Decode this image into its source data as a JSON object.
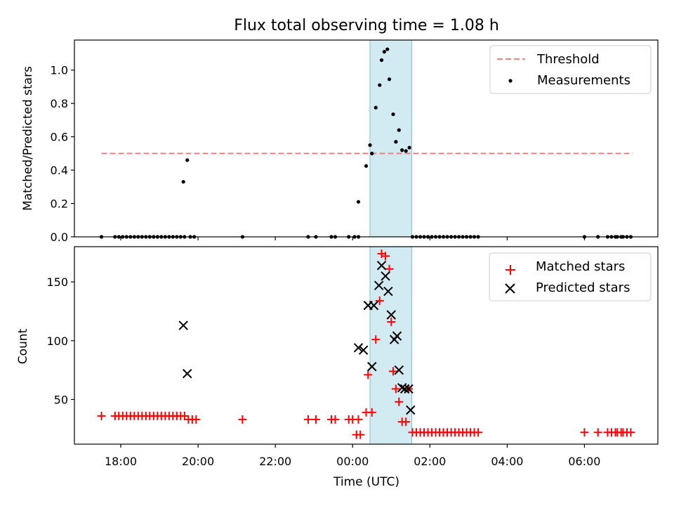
{
  "title": "Flux total observing time = 1.08 h",
  "chart_data": [
    {
      "type": "scatter",
      "panel": "top",
      "ylabel": "Matched/Predicted stars",
      "xlabel": "",
      "x_unit": "hours since 18:00 UTC",
      "xlim": [
        -1.2,
        13.9
      ],
      "ylim": [
        0.0,
        1.18
      ],
      "yticks": [
        0.0,
        0.2,
        0.4,
        0.6,
        0.8,
        1.0
      ],
      "ytick_labels": [
        "0.0",
        "0.2",
        "0.4",
        "0.6",
        "0.8",
        "1.0"
      ],
      "shaded_interval": [
        6.45,
        7.53
      ],
      "threshold": {
        "label": "Threshold",
        "value": 0.5,
        "x_range": [
          -0.5,
          13.25
        ],
        "color": "#f08080"
      },
      "legend": {
        "position": "top-right",
        "entries": [
          "Threshold",
          "Measurements"
        ]
      },
      "series": [
        {
          "name": "Measurements",
          "color": "#000000",
          "marker": "dot",
          "points": [
            [
              -0.5,
              0
            ],
            [
              -0.15,
              0
            ],
            [
              -0.05,
              0
            ],
            [
              0.05,
              0
            ],
            [
              0.15,
              0
            ],
            [
              0.25,
              0
            ],
            [
              0.35,
              0
            ],
            [
              0.45,
              0
            ],
            [
              0.55,
              0
            ],
            [
              0.65,
              0
            ],
            [
              0.75,
              0
            ],
            [
              0.85,
              0
            ],
            [
              0.95,
              0
            ],
            [
              1.05,
              0
            ],
            [
              1.15,
              0
            ],
            [
              1.25,
              0
            ],
            [
              1.35,
              0
            ],
            [
              1.45,
              0
            ],
            [
              1.55,
              0
            ],
            [
              1.65,
              0
            ],
            [
              1.8,
              0
            ],
            [
              1.9,
              0
            ],
            [
              1.62,
              0.33
            ],
            [
              1.72,
              0.46
            ],
            [
              3.15,
              0
            ],
            [
              4.85,
              0
            ],
            [
              5.05,
              0
            ],
            [
              5.45,
              0
            ],
            [
              5.55,
              0
            ],
            [
              5.9,
              0
            ],
            [
              6.05,
              0
            ],
            [
              6.15,
              0
            ],
            [
              6.15,
              0.21
            ],
            [
              6.35,
              0.425
            ],
            [
              6.45,
              0.55
            ],
            [
              6.5,
              0.5
            ],
            [
              6.6,
              0.775
            ],
            [
              6.7,
              0.91
            ],
            [
              6.75,
              1.06
            ],
            [
              6.82,
              1.11
            ],
            [
              6.9,
              1.125
            ],
            [
              6.95,
              0.945
            ],
            [
              7.05,
              0.735
            ],
            [
              7.12,
              0.57
            ],
            [
              7.2,
              0.64
            ],
            [
              7.28,
              0.52
            ],
            [
              7.38,
              0.515
            ],
            [
              7.47,
              0.535
            ],
            [
              7.55,
              0
            ],
            [
              7.65,
              0
            ],
            [
              7.75,
              0
            ],
            [
              7.85,
              0
            ],
            [
              7.95,
              0
            ],
            [
              8.05,
              0
            ],
            [
              8.15,
              0
            ],
            [
              8.25,
              0
            ],
            [
              8.35,
              0
            ],
            [
              8.45,
              0
            ],
            [
              8.55,
              0
            ],
            [
              8.65,
              0
            ],
            [
              8.75,
              0
            ],
            [
              8.85,
              0
            ],
            [
              8.95,
              0
            ],
            [
              9.05,
              0
            ],
            [
              9.15,
              0
            ],
            [
              9.25,
              0
            ],
            [
              12.0,
              0
            ],
            [
              12.35,
              0
            ],
            [
              12.6,
              0
            ],
            [
              12.7,
              0
            ],
            [
              12.8,
              0
            ],
            [
              12.85,
              0
            ],
            [
              12.95,
              0
            ],
            [
              13.0,
              0
            ],
            [
              13.1,
              0
            ],
            [
              13.2,
              0
            ]
          ]
        }
      ]
    },
    {
      "type": "scatter",
      "panel": "bottom",
      "ylabel": "Count",
      "xlabel": "Time (UTC)",
      "x_unit": "hours since 18:00 UTC",
      "xlim": [
        -1.2,
        13.9
      ],
      "ylim": [
        12,
        180
      ],
      "yticks": [
        50,
        100,
        150
      ],
      "ytick_labels": [
        "50",
        "100",
        "150"
      ],
      "xticks": [
        0,
        2,
        4,
        6,
        8,
        10,
        12
      ],
      "xtick_labels": [
        "18:00",
        "20:00",
        "22:00",
        "00:00",
        "02:00",
        "04:00",
        "06:00"
      ],
      "shaded_interval": [
        6.45,
        7.53
      ],
      "legend": {
        "position": "top-right",
        "entries": [
          "Matched stars",
          "Predicted stars"
        ]
      },
      "series": [
        {
          "name": "Matched stars",
          "color": "#ff0000",
          "marker": "plus",
          "points": [
            [
              -0.5,
              36
            ],
            [
              -0.15,
              36
            ],
            [
              -0.05,
              36
            ],
            [
              0.05,
              36
            ],
            [
              0.15,
              36
            ],
            [
              0.25,
              36
            ],
            [
              0.35,
              36
            ],
            [
              0.45,
              36
            ],
            [
              0.55,
              36
            ],
            [
              0.65,
              36
            ],
            [
              0.75,
              36
            ],
            [
              0.85,
              36
            ],
            [
              0.95,
              36
            ],
            [
              1.05,
              36
            ],
            [
              1.15,
              36
            ],
            [
              1.25,
              36
            ],
            [
              1.35,
              36
            ],
            [
              1.45,
              36
            ],
            [
              1.55,
              36
            ],
            [
              1.65,
              36
            ],
            [
              1.75,
              33
            ],
            [
              1.85,
              33
            ],
            [
              1.95,
              33
            ],
            [
              3.15,
              33
            ],
            [
              4.85,
              33
            ],
            [
              5.05,
              33
            ],
            [
              5.45,
              33
            ],
            [
              5.55,
              33
            ],
            [
              5.9,
              33
            ],
            [
              6.0,
              33
            ],
            [
              6.15,
              33
            ],
            [
              6.1,
              20
            ],
            [
              6.2,
              20
            ],
            [
              6.35,
              39
            ],
            [
              6.4,
              71
            ],
            [
              6.5,
              39
            ],
            [
              6.6,
              101
            ],
            [
              6.7,
              134
            ],
            [
              6.75,
              174
            ],
            [
              6.85,
              172
            ],
            [
              6.95,
              161
            ],
            [
              7.0,
              116
            ],
            [
              7.05,
              74
            ],
            [
              7.12,
              59
            ],
            [
              7.2,
              48
            ],
            [
              7.28,
              31
            ],
            [
              7.38,
              31
            ],
            [
              7.45,
              59
            ],
            [
              7.55,
              22
            ],
            [
              7.65,
              22
            ],
            [
              7.75,
              22
            ],
            [
              7.85,
              22
            ],
            [
              7.95,
              22
            ],
            [
              8.05,
              22
            ],
            [
              8.15,
              22
            ],
            [
              8.25,
              22
            ],
            [
              8.35,
              22
            ],
            [
              8.45,
              22
            ],
            [
              8.55,
              22
            ],
            [
              8.65,
              22
            ],
            [
              8.75,
              22
            ],
            [
              8.85,
              22
            ],
            [
              8.95,
              22
            ],
            [
              9.05,
              22
            ],
            [
              9.15,
              22
            ],
            [
              9.25,
              22
            ],
            [
              12.0,
              22
            ],
            [
              12.35,
              22
            ],
            [
              12.6,
              22
            ],
            [
              12.7,
              22
            ],
            [
              12.8,
              22
            ],
            [
              12.85,
              22
            ],
            [
              12.95,
              22
            ],
            [
              13.0,
              22
            ],
            [
              13.1,
              22
            ],
            [
              13.2,
              22
            ]
          ]
        },
        {
          "name": "Predicted stars",
          "color": "#000000",
          "marker": "x",
          "points": [
            [
              1.62,
              113
            ],
            [
              1.72,
              72
            ],
            [
              6.15,
              94
            ],
            [
              6.28,
              92
            ],
            [
              6.4,
              130
            ],
            [
              6.5,
              78
            ],
            [
              6.55,
              130
            ],
            [
              6.68,
              147
            ],
            [
              6.75,
              164
            ],
            [
              6.85,
              155
            ],
            [
              6.92,
              142
            ],
            [
              7.0,
              122
            ],
            [
              7.08,
              101
            ],
            [
              7.15,
              104
            ],
            [
              7.2,
              75
            ],
            [
              7.28,
              60
            ],
            [
              7.35,
              59
            ],
            [
              7.45,
              59
            ],
            [
              7.5,
              41
            ]
          ]
        }
      ]
    }
  ]
}
